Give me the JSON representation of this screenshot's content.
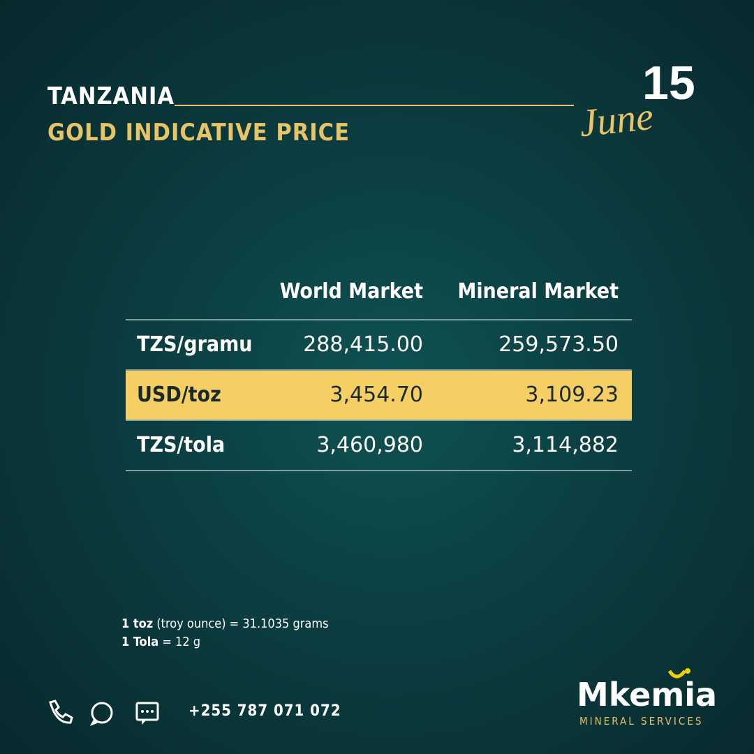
{
  "header": {
    "country": "TANZANIA",
    "title": "GOLD INDICATIVE PRICE",
    "day": "15",
    "month": "June"
  },
  "table": {
    "columns": [
      "World Market",
      "Mineral Market"
    ],
    "rows": [
      {
        "label": "TZS/gramu",
        "values": [
          "288,415.00",
          "259,573.50"
        ]
      },
      {
        "label": "USD/toz",
        "values": [
          "3,454.70",
          "3,109.23"
        ]
      },
      {
        "label": "TZS/tola",
        "values": [
          "3,460,980",
          "3,114,882"
        ]
      }
    ]
  },
  "notes": [
    {
      "term": "1 toz",
      "text": "(troy ounce) = 31.1035 grams"
    },
    {
      "term": "1 Tola",
      "text": "= 12 g"
    }
  ],
  "contact": {
    "phone": "+255 787 071 072"
  },
  "brand": {
    "name": "Mkemia",
    "tagline": "MINERAL SERVICES"
  }
}
